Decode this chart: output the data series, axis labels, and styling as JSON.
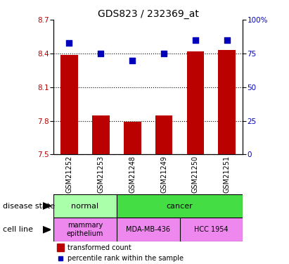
{
  "title": "GDS823 / 232369_at",
  "samples": [
    "GSM21252",
    "GSM21253",
    "GSM21248",
    "GSM21249",
    "GSM21250",
    "GSM21251"
  ],
  "bar_values": [
    8.39,
    7.85,
    7.79,
    7.85,
    8.42,
    8.43
  ],
  "dot_values": [
    83,
    75,
    70,
    75,
    85,
    85
  ],
  "ylim_left": [
    7.5,
    8.7
  ],
  "ylim_right": [
    0,
    100
  ],
  "yticks_left": [
    7.5,
    7.8,
    8.1,
    8.4,
    8.7
  ],
  "yticks_right": [
    0,
    25,
    50,
    75,
    100
  ],
  "bar_color": "#bb0000",
  "dot_color": "#0000bb",
  "dot_size": 28,
  "hline_values": [
    7.8,
    8.1,
    8.4
  ],
  "disease_normal_color": "#aaffaa",
  "disease_cancer_color": "#44dd44",
  "cell_line_color": "#ee88ee",
  "label_disease": "disease state",
  "label_cell": "cell line",
  "legend_bar": "transformed count",
  "legend_dot": "percentile rank within the sample",
  "title_fontsize": 10,
  "tick_fontsize": 7.5,
  "label_fontsize": 8,
  "sample_fontsize": 7
}
